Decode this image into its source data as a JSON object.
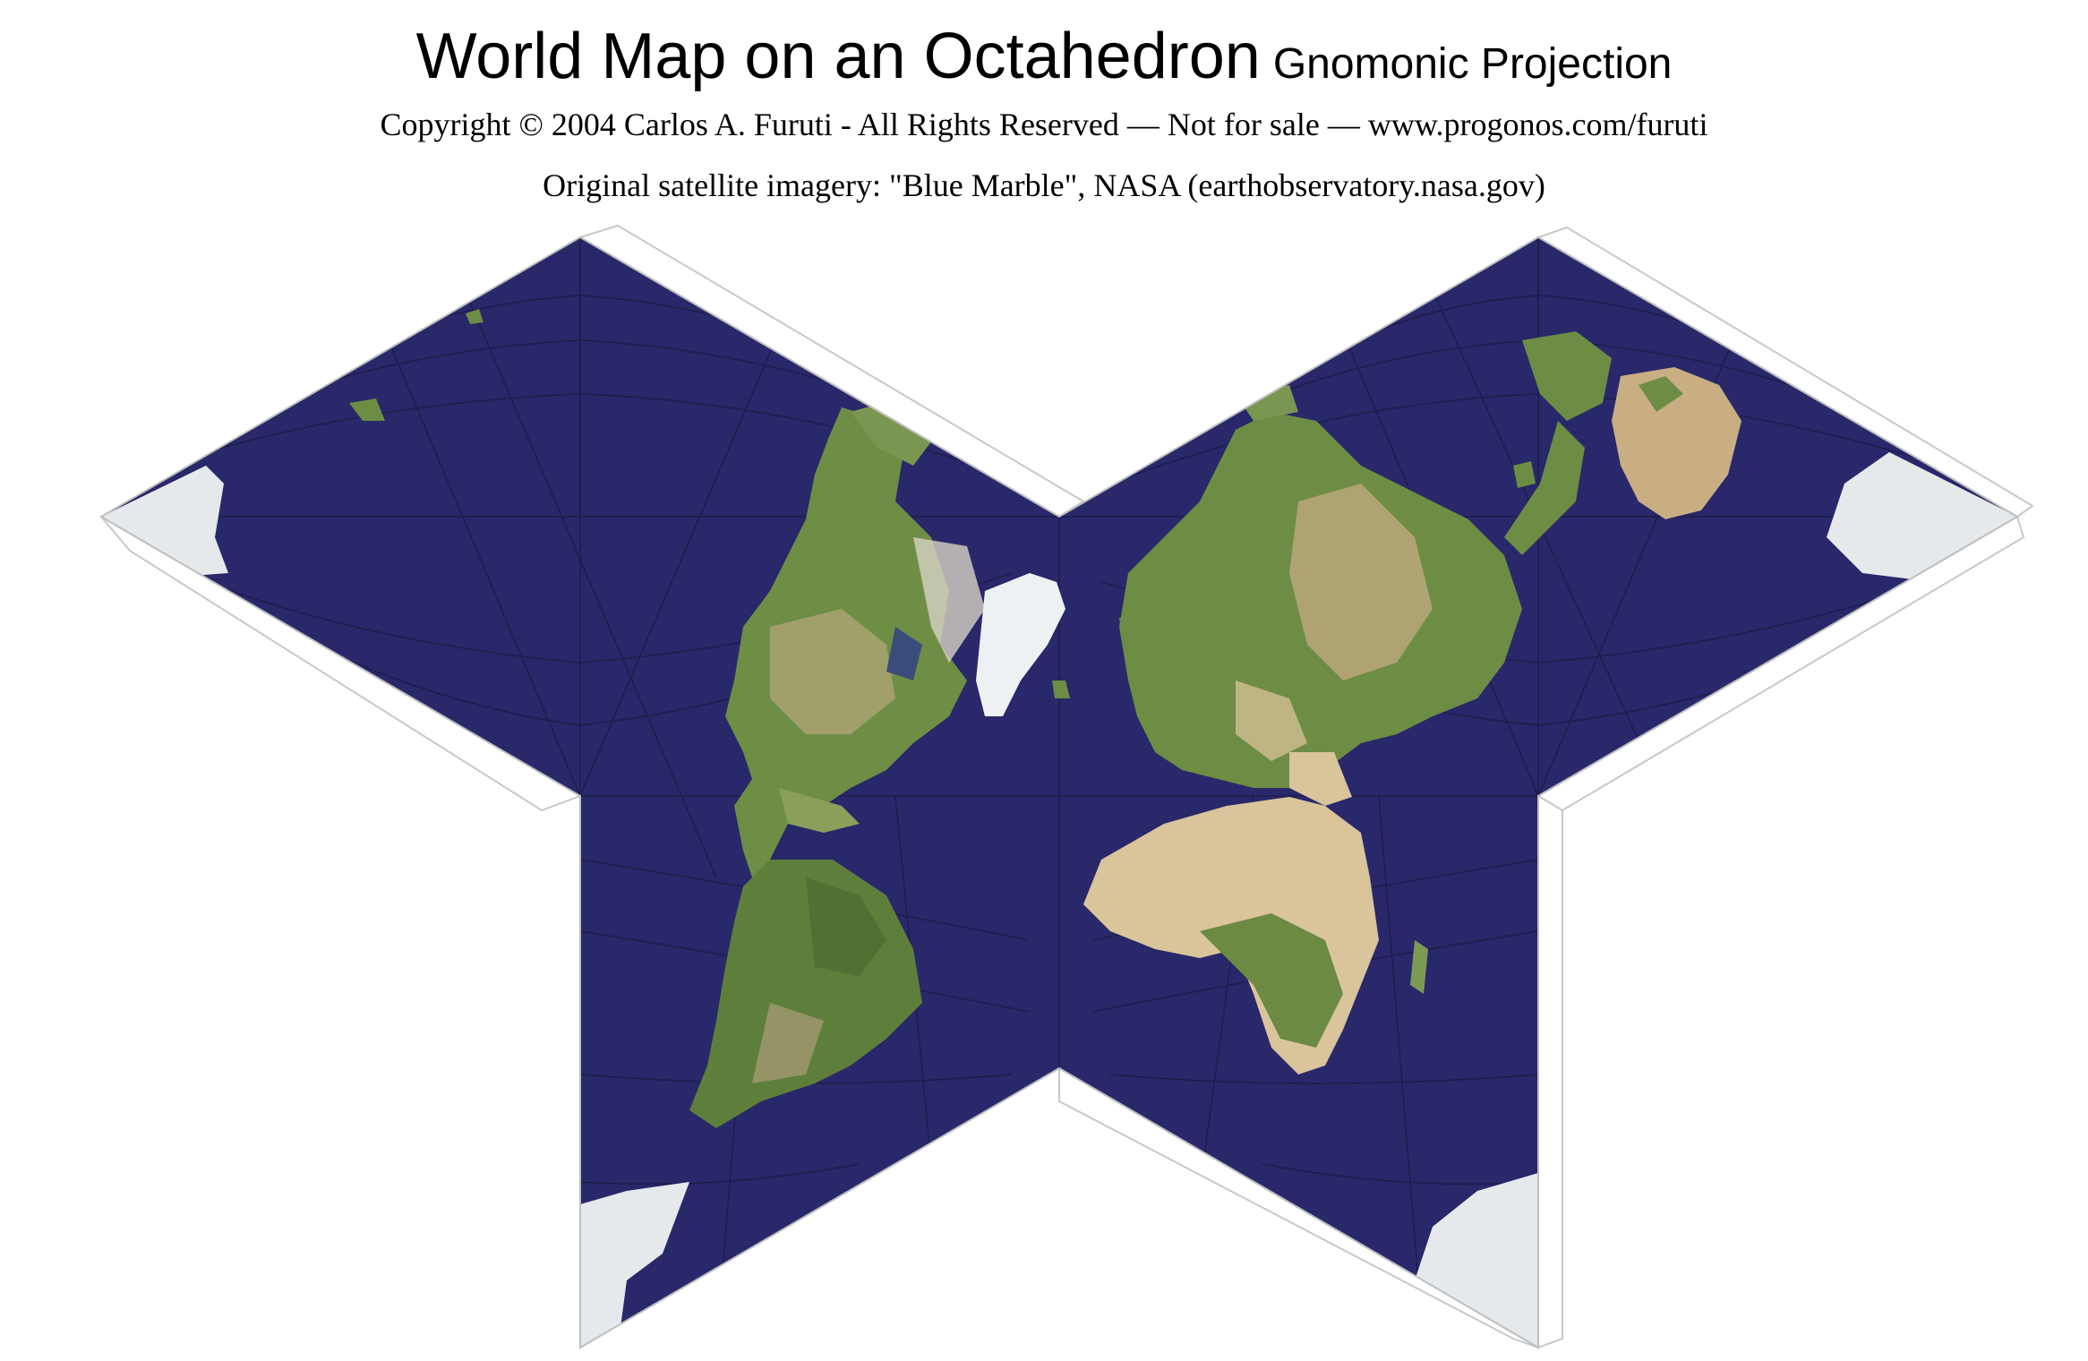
{
  "header": {
    "title": "World Map on an Octahedron",
    "subtitle": "Gnomonic Projection",
    "copyright": "Copyright © 2004 Carlos A. Furuti - All Rights Reserved — Not for sale — www.progonos.com/furuti",
    "credit": "Original satellite imagery: \"Blue Marble\", NASA (earthobservatory.nasa.gov)"
  },
  "colors": {
    "ocean": "#28286a",
    "land_green": "#6f8f45",
    "land_desert": "#d9c39b",
    "ice": "#e7ebee",
    "graticule": "#1a1a3f",
    "flap": "#ffffff"
  }
}
